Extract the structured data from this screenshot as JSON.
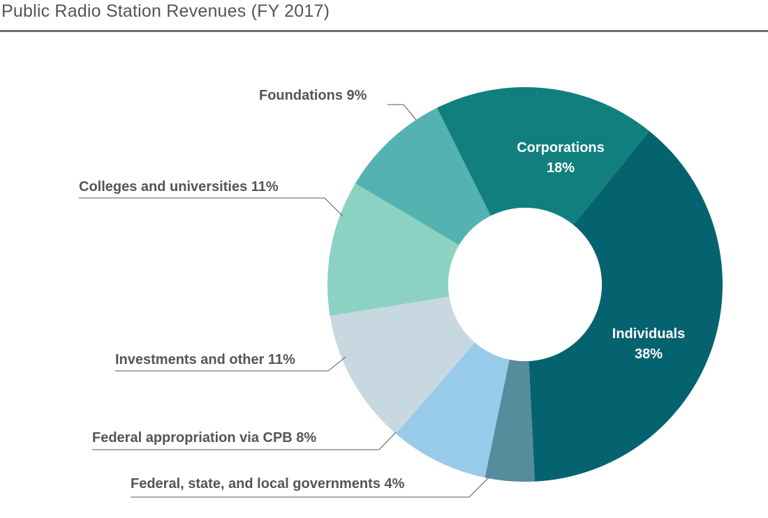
{
  "header": {
    "title": "Public Radio Station Revenues (FY 2017)"
  },
  "chart_data": {
    "type": "pie",
    "title": "Public Radio Station Revenues (FY 2017)",
    "slices": [
      {
        "label": "Individuals",
        "value": 38,
        "value_label": "38%",
        "color": "#05636f",
        "label_inside": true
      },
      {
        "label": "Federal, state, and local governments",
        "value": 4,
        "value_label": "4%",
        "color": "#568c9b",
        "label_inside": false
      },
      {
        "label": "Federal appropriation via CPB",
        "value": 8,
        "value_label": "8%",
        "color": "#98cbea",
        "label_inside": false
      },
      {
        "label": "Investments and other",
        "value": 11,
        "value_label": "11%",
        "color": "#c8d8e1",
        "label_inside": false
      },
      {
        "label": "Colleges and universities",
        "value": 11,
        "value_label": "11%",
        "color": "#8cd2c3",
        "label_inside": false
      },
      {
        "label": "Foundations",
        "value": 9,
        "value_label": "9%",
        "color": "#54b3b0",
        "label_inside": false
      },
      {
        "label": "Corporations",
        "value": 18,
        "value_label": "18%",
        "color": "#117f7e",
        "label_inside": true
      }
    ],
    "donut": true,
    "legend": "none",
    "label_text_color": "#555555"
  }
}
